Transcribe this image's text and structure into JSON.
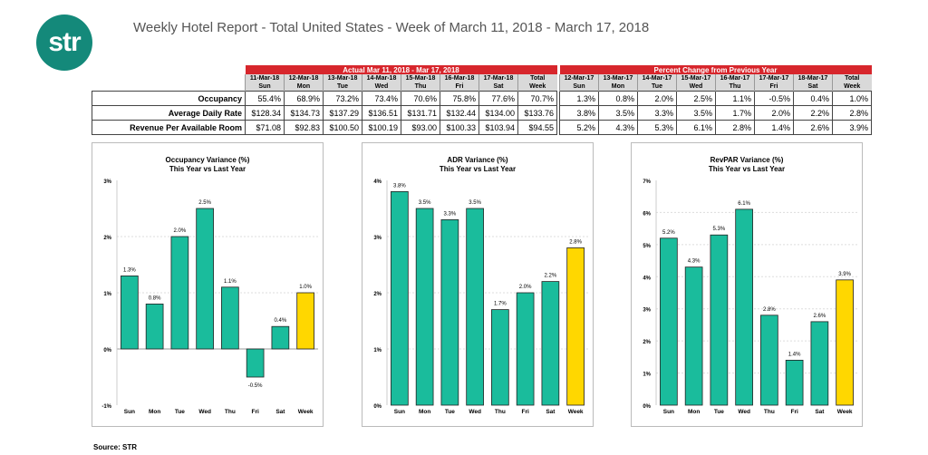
{
  "logo_text": "str",
  "title": "Weekly Hotel Report - Total United States - Week of March 11, 2018 - March 17, 2018",
  "table": {
    "actual_header": "Actual Mar 11, 2018 - Mar 17, 2018",
    "change_header": "Percent Change from Previous Year",
    "actual_dates": [
      "11-Mar-18",
      "12-Mar-18",
      "13-Mar-18",
      "14-Mar-18",
      "15-Mar-18",
      "16-Mar-18",
      "17-Mar-18",
      "Total"
    ],
    "change_dates": [
      "12-Mar-17",
      "13-Mar-17",
      "14-Mar-17",
      "15-Mar-17",
      "16-Mar-17",
      "17-Mar-17",
      "18-Mar-17",
      "Total"
    ],
    "days": [
      "Sun",
      "Mon",
      "Tue",
      "Wed",
      "Thu",
      "Fri",
      "Sat",
      "Week"
    ],
    "rows": [
      {
        "label": "Occupancy",
        "actual": [
          "55.4%",
          "68.9%",
          "73.2%",
          "73.4%",
          "70.6%",
          "75.8%",
          "77.6%",
          "70.7%"
        ],
        "change": [
          "1.3%",
          "0.8%",
          "2.0%",
          "2.5%",
          "1.1%",
          "-0.5%",
          "0.4%",
          "1.0%"
        ]
      },
      {
        "label": "Average Daily Rate",
        "actual": [
          "$128.34",
          "$134.73",
          "$137.29",
          "$136.51",
          "$131.71",
          "$132.44",
          "$134.00",
          "$133.76"
        ],
        "change": [
          "3.8%",
          "3.5%",
          "3.3%",
          "3.5%",
          "1.7%",
          "2.0%",
          "2.2%",
          "2.8%"
        ]
      },
      {
        "label": "Revenue Per Available Room",
        "actual": [
          "$71.08",
          "$92.83",
          "$100.50",
          "$100.19",
          "$93.00",
          "$100.33",
          "$103.94",
          "$94.55"
        ],
        "change": [
          "5.2%",
          "4.3%",
          "5.3%",
          "6.1%",
          "2.8%",
          "1.4%",
          "2.6%",
          "3.9%"
        ]
      }
    ]
  },
  "colors": {
    "bar": "#1abc9c",
    "week_bar": "#ffd700",
    "header": "#d7262c",
    "logo": "#14897a"
  },
  "chart_data": [
    {
      "type": "bar",
      "title": "Occupancy Variance (%)",
      "subtitle": "This Year vs Last Year",
      "categories": [
        "Sun",
        "Mon",
        "Tue",
        "Wed",
        "Thu",
        "Fri",
        "Sat",
        "Week"
      ],
      "values": [
        1.3,
        0.8,
        2.0,
        2.5,
        1.1,
        -0.5,
        0.4,
        1.0
      ],
      "labels": [
        "1.3%",
        "0.8%",
        "2.0%",
        "2.5%",
        "1.1%",
        "-0.5%",
        "0.4%",
        "1.0%"
      ],
      "ylim": [
        -1,
        3
      ],
      "yticks": [
        "-1%",
        "0%",
        "1%",
        "2%",
        "3%"
      ],
      "grid": true
    },
    {
      "type": "bar",
      "title": "ADR Variance (%)",
      "subtitle": "This Year vs Last Year",
      "categories": [
        "Sun",
        "Mon",
        "Tue",
        "Wed",
        "Thu",
        "Fri",
        "Sat",
        "Week"
      ],
      "values": [
        3.8,
        3.5,
        3.3,
        3.5,
        1.7,
        2.0,
        2.2,
        2.8
      ],
      "labels": [
        "3.8%",
        "3.5%",
        "3.3%",
        "3.5%",
        "1.7%",
        "2.0%",
        "2.2%",
        "2.8%"
      ],
      "ylim": [
        0,
        4
      ],
      "yticks": [
        "0%",
        "1%",
        "2%",
        "3%",
        "4%"
      ],
      "grid": true
    },
    {
      "type": "bar",
      "title": "RevPAR Variance (%)",
      "subtitle": "This Year vs Last Year",
      "categories": [
        "Sun",
        "Mon",
        "Tue",
        "Wed",
        "Thu",
        "Fri",
        "Sat",
        "Week"
      ],
      "values": [
        5.2,
        4.3,
        5.3,
        6.1,
        2.8,
        1.4,
        2.6,
        3.9
      ],
      "labels": [
        "5.2%",
        "4.3%",
        "5.3%",
        "6.1%",
        "2.8%",
        "1.4%",
        "2.6%",
        "3.9%"
      ],
      "ylim": [
        0,
        7
      ],
      "yticks": [
        "0%",
        "1%",
        "2%",
        "3%",
        "4%",
        "5%",
        "6%",
        "7%"
      ],
      "grid": true
    }
  ],
  "source": "Source: STR"
}
